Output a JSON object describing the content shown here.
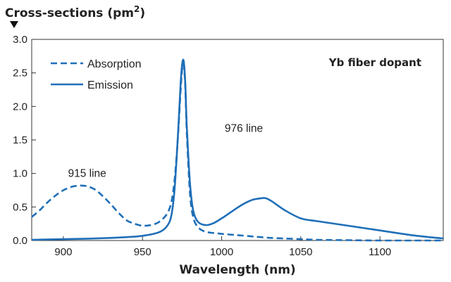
{
  "chart_data": {
    "type": "line",
    "title": "",
    "ylabel": "Cross-sections (pm",
    "ylabel_sup": "2",
    "ylabel_close": ")",
    "xlabel": "Wavelength (nm)",
    "corner_label": "Yb fiber dopant",
    "xlim": [
      880,
      1140
    ],
    "ylim": [
      0,
      3.0
    ],
    "x_ticks": [
      900,
      950,
      1000,
      1050,
      1100
    ],
    "y_ticks": [
      "0.0",
      "0.5",
      "1.0",
      "1.5",
      "2.0",
      "2.5",
      "3.0"
    ],
    "grid": false,
    "legend_position": "top-left",
    "annotations": [
      {
        "text": "915 line",
        "x": 915,
        "y": 0.95
      },
      {
        "text": "976 line",
        "x": 1014,
        "y": 1.62
      }
    ],
    "series": [
      {
        "name": "Absorption",
        "style": "dashed",
        "color": "#1f6fb8",
        "x": [
          880,
          885,
          890,
          895,
          900,
          905,
          910,
          915,
          920,
          925,
          930,
          935,
          940,
          945,
          950,
          955,
          960,
          965,
          968,
          970,
          972,
          974,
          975,
          976,
          977,
          978,
          980,
          982,
          985,
          990,
          1000,
          1010,
          1020,
          1030,
          1040,
          1050,
          1060,
          1080,
          1100,
          1140
        ],
        "y": [
          0.35,
          0.45,
          0.57,
          0.67,
          0.75,
          0.8,
          0.82,
          0.81,
          0.76,
          0.66,
          0.54,
          0.41,
          0.3,
          0.25,
          0.22,
          0.23,
          0.27,
          0.38,
          0.55,
          0.85,
          1.4,
          2.2,
          2.55,
          2.62,
          2.3,
          1.6,
          0.7,
          0.35,
          0.2,
          0.13,
          0.1,
          0.08,
          0.06,
          0.04,
          0.03,
          0.02,
          0.01,
          0.005,
          0.0,
          0.0
        ]
      },
      {
        "name": "Emission",
        "style": "solid",
        "color": "#1f6fb8",
        "x": [
          880,
          900,
          920,
          940,
          950,
          960,
          965,
          968,
          970,
          972,
          974,
          975,
          976,
          977,
          978,
          980,
          982,
          985,
          990,
          995,
          1000,
          1005,
          1010,
          1015,
          1020,
          1025,
          1028,
          1032,
          1040,
          1050,
          1060,
          1080,
          1100,
          1120,
          1140
        ],
        "y": [
          0.01,
          0.02,
          0.03,
          0.05,
          0.07,
          0.12,
          0.2,
          0.35,
          0.7,
          1.4,
          2.3,
          2.62,
          2.68,
          2.35,
          1.7,
          0.85,
          0.45,
          0.28,
          0.23,
          0.26,
          0.33,
          0.41,
          0.49,
          0.56,
          0.61,
          0.63,
          0.63,
          0.58,
          0.45,
          0.33,
          0.29,
          0.22,
          0.15,
          0.08,
          0.03
        ]
      }
    ]
  }
}
